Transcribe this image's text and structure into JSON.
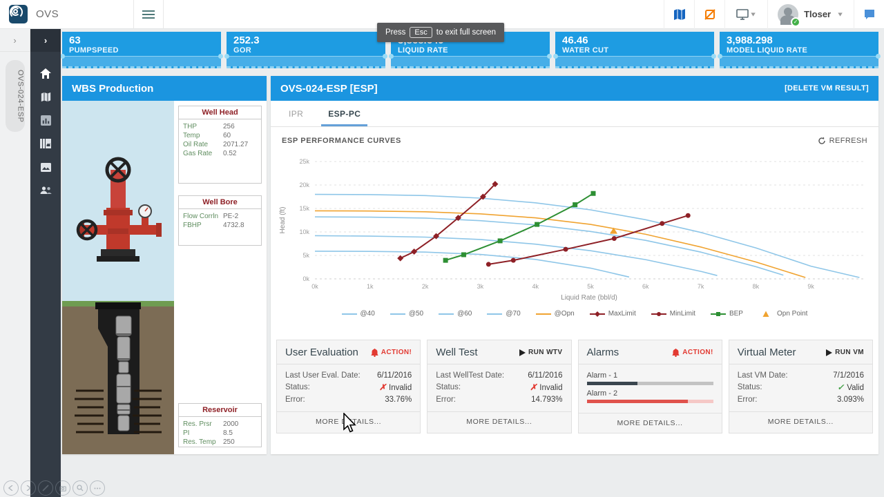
{
  "topbar": {
    "app_title": "OVS",
    "user_name": "Tloser"
  },
  "toast": {
    "prefix": "Press",
    "key": "Esc",
    "suffix": "to exit full screen"
  },
  "sidebar": {
    "well_tab": "OVS-024-ESP"
  },
  "kpis": [
    {
      "value": "63",
      "label": "PUMPSPEED"
    },
    {
      "value": "252.3",
      "label": "GOR"
    },
    {
      "value": "3,868.649",
      "label": "LIQUID RATE"
    },
    {
      "value": "46.46",
      "label": "WATER CUT"
    },
    {
      "value": "3,988.298",
      "label": "MODEL LIQUID RATE"
    }
  ],
  "wbs": {
    "title": "WBS Production",
    "tables": [
      {
        "title": "Well Head",
        "rows": [
          [
            "THP",
            "256"
          ],
          [
            "Temp",
            "60"
          ],
          [
            "Oil Rate",
            "2071.27"
          ],
          [
            "Gas Rate",
            "0.52"
          ]
        ]
      },
      {
        "title": "Well Bore",
        "rows": [
          [
            "Flow Corrln",
            "PE-2"
          ],
          [
            "FBHP",
            "4732.8"
          ]
        ]
      },
      {
        "title": "Reservoir",
        "rows": [
          [
            "Res. Prsr",
            "2000"
          ],
          [
            "PI",
            "8.5"
          ],
          [
            "Res. Temp",
            "250"
          ]
        ]
      }
    ]
  },
  "esp": {
    "title": "OVS-024-ESP [ESP]",
    "delete_action": "[DELETE VM RESULT]",
    "tabs": [
      {
        "label": "IPR"
      },
      {
        "label": "ESP-PC"
      }
    ],
    "active_tab": "ESP-PC",
    "section_title": "ESP PERFORMANCE CURVES",
    "refresh_label": "REFRESH"
  },
  "chart_data": {
    "type": "line",
    "title": "ESP PERFORMANCE CURVES",
    "xlabel": "Liquid Rate (bbl/d)",
    "ylabel": "Head (ft)",
    "xlim": [
      0,
      9.95
    ],
    "ylim": [
      0,
      25
    ],
    "grid": "horizontal-dashed",
    "legend_position": "bottom",
    "xticks": [
      "0k",
      "1k",
      "2k",
      "3k",
      "4k",
      "5k",
      "6k",
      "7k",
      "8k",
      "9k"
    ],
    "yticks": [
      "0k",
      "5k",
      "10k",
      "15k",
      "20k",
      "25k"
    ],
    "units_note": "axis values in thousands (k)",
    "series": [
      {
        "name": "@40",
        "color": "#8ec6e8",
        "marker": "none",
        "points": [
          [
            0,
            5.9
          ],
          [
            1,
            5.85
          ],
          [
            2,
            5.7
          ],
          [
            3,
            5.2
          ],
          [
            4,
            4.15
          ],
          [
            5,
            2.3
          ],
          [
            5.7,
            0.4
          ]
        ]
      },
      {
        "name": "@50",
        "color": "#8ec6e8",
        "marker": "none",
        "points": [
          [
            0,
            9.2
          ],
          [
            1,
            9.1
          ],
          [
            2,
            8.9
          ],
          [
            3,
            8.4
          ],
          [
            4,
            7.4
          ],
          [
            5,
            6.0
          ],
          [
            6,
            4.1
          ],
          [
            7,
            1.6
          ],
          [
            7.3,
            0.7
          ]
        ]
      },
      {
        "name": "@60",
        "color": "#8ec6e8",
        "marker": "none",
        "points": [
          [
            0,
            13.2
          ],
          [
            1,
            13.15
          ],
          [
            2,
            12.95
          ],
          [
            3,
            12.4
          ],
          [
            4,
            11.5
          ],
          [
            5,
            10.1
          ],
          [
            6,
            8.2
          ],
          [
            7,
            5.7
          ],
          [
            8,
            2.6
          ],
          [
            8.5,
            0.8
          ]
        ]
      },
      {
        "name": "@70",
        "color": "#8ec6e8",
        "marker": "none",
        "points": [
          [
            0,
            18.0
          ],
          [
            1,
            17.95
          ],
          [
            2,
            17.75
          ],
          [
            3,
            17.2
          ],
          [
            4,
            16.2
          ],
          [
            5,
            14.7
          ],
          [
            6,
            12.6
          ],
          [
            7,
            9.9
          ],
          [
            8,
            6.6
          ],
          [
            9,
            2.7
          ],
          [
            9.88,
            0.3
          ]
        ]
      },
      {
        "name": "@Opn",
        "color": "#f0a330",
        "marker": "none",
        "points": [
          [
            0,
            14.5
          ],
          [
            1,
            14.45
          ],
          [
            2,
            14.3
          ],
          [
            3,
            13.85
          ],
          [
            4,
            13.0
          ],
          [
            5,
            11.6
          ],
          [
            6,
            9.5
          ],
          [
            7,
            6.8
          ],
          [
            8,
            3.6
          ],
          [
            8.9,
            0.3
          ]
        ]
      },
      {
        "name": "MaxLimit",
        "color": "#8e2026",
        "marker": "diamond",
        "points": [
          [
            1.55,
            4.4
          ],
          [
            1.8,
            5.8
          ],
          [
            2.2,
            9.1
          ],
          [
            2.6,
            13.0
          ],
          [
            3.05,
            17.5
          ],
          [
            3.27,
            20.2
          ]
        ]
      },
      {
        "name": "MinLimit",
        "color": "#8e2026",
        "marker": "circle",
        "points": [
          [
            3.15,
            3.1
          ],
          [
            3.6,
            3.95
          ],
          [
            4.55,
            6.3
          ],
          [
            5.43,
            8.6
          ],
          [
            6.3,
            11.8
          ],
          [
            6.77,
            13.5
          ]
        ]
      },
      {
        "name": "BEP",
        "color": "#2d8f33",
        "marker": "square",
        "points": [
          [
            2.37,
            3.95
          ],
          [
            2.7,
            5.15
          ],
          [
            3.36,
            8.1
          ],
          [
            4.03,
            11.6
          ],
          [
            4.72,
            15.8
          ],
          [
            5.05,
            18.2
          ]
        ]
      },
      {
        "name": "Opn Point",
        "color": "#f0a330",
        "marker": "triangle",
        "points": [
          [
            5.42,
            10.2
          ]
        ]
      }
    ]
  },
  "cards": [
    {
      "title": "User Evaluation",
      "action": "ACTION!",
      "rows": [
        {
          "label": "Last User Eval. Date:",
          "value": "6/11/2016"
        },
        {
          "label": "Status:",
          "value": "Invalid"
        },
        {
          "label": "Error:",
          "value": "33.76%"
        }
      ],
      "footer": "MORE DETAILS..."
    },
    {
      "title": "Well Test",
      "action": "RUN WTV",
      "rows": [
        {
          "label": "Last WellTest Date:",
          "value": "6/11/2016"
        },
        {
          "label": "Status:",
          "value": "Invalid"
        },
        {
          "label": "Error:",
          "value": "14.793%"
        }
      ],
      "footer": "MORE DETAILS..."
    },
    {
      "title": "Alarms",
      "action": "ACTION!",
      "bars": [
        {
          "label": "Alarm - 1",
          "pct": 40,
          "fill": "#3b464f",
          "track": "#c3c3c3"
        },
        {
          "label": "Alarm - 2",
          "pct": 80,
          "fill": "#e0524c",
          "track": "#f5c8c6"
        }
      ],
      "footer": "MORE DETAILS..."
    },
    {
      "title": "Virtual Meter",
      "action": "RUN VM",
      "rows": [
        {
          "label": "Last VM Date:",
          "value": "7/1/2016"
        },
        {
          "label": "Status:",
          "value": "Valid"
        },
        {
          "label": "Error:",
          "value": "3.093%"
        }
      ],
      "footer": "MORE DETAILS..."
    }
  ],
  "colors": {
    "accent_blue": "#1b95e0",
    "kpi_blue": "#1e9ce2",
    "alert_red": "#e23a32",
    "valid_green": "#43a047",
    "maroon": "#8e2026",
    "curve_blue": "#8ec6e8",
    "curve_orange": "#f0a330",
    "curve_green": "#2d8f33",
    "sidebar_dark": "#333b45"
  }
}
